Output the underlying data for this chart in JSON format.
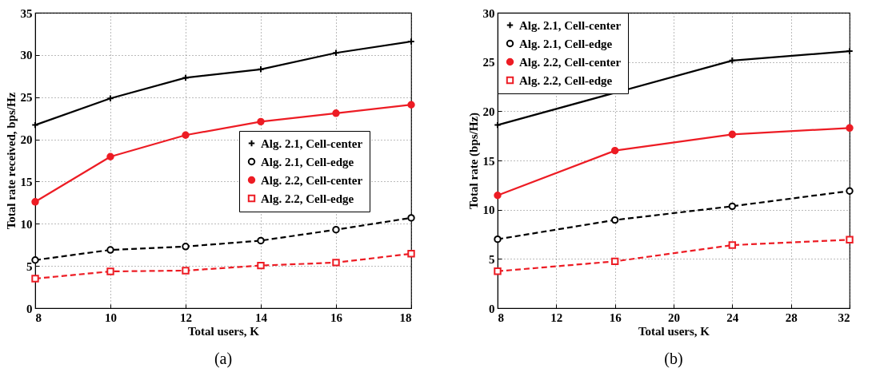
{
  "chart_data": [
    {
      "type": "line",
      "x": [
        8,
        10,
        12,
        14,
        16,
        18
      ],
      "xlabel": "Total users, K",
      "ylabel": "Total rate received, bps/Hz",
      "xlim": [
        8,
        18
      ],
      "xticks": [
        8,
        10,
        12,
        14,
        16,
        18
      ],
      "ylim": [
        0,
        35
      ],
      "yticks": [
        0,
        5,
        10,
        15,
        20,
        25,
        30,
        35
      ],
      "grid": true,
      "legend": "right",
      "annotations": [
        "(a)"
      ],
      "series": [
        {
          "name": "Alg. 2.1, Cell-center",
          "color": "#000000",
          "marker": "cross",
          "line_style": "solid",
          "values": [
            21.7,
            24.85,
            27.3,
            28.3,
            30.25,
            31.6
          ]
        },
        {
          "name": "Alg. 2.1, Cell-edge",
          "color": "#000000",
          "marker": "circle",
          "line_style": "dashed",
          "values": [
            5.7,
            6.9,
            7.3,
            8.0,
            9.3,
            10.7
          ]
        },
        {
          "name": "Alg. 2.2, Cell-center",
          "color": "#ed1c24",
          "marker": "circle",
          "line_style": "solid",
          "values": [
            12.6,
            17.95,
            20.5,
            22.1,
            23.1,
            24.1
          ]
        },
        {
          "name": "Alg. 2.2, Cell-edge",
          "color": "#ed1c24",
          "marker": "square",
          "line_style": "dashed",
          "values": [
            3.5,
            4.35,
            4.45,
            5.05,
            5.4,
            6.45
          ]
        }
      ]
    },
    {
      "type": "line",
      "x": [
        8,
        16,
        24,
        32
      ],
      "xlabel": "Total users, K",
      "ylabel": "Total rate (bps/Hz)",
      "xlim": [
        8,
        32
      ],
      "xticks": [
        8,
        12,
        16,
        20,
        24,
        28,
        32
      ],
      "ylim": [
        0,
        30
      ],
      "yticks": [
        0,
        5,
        10,
        15,
        20,
        25,
        30
      ],
      "grid": true,
      "legend": "top left",
      "annotations": [
        "(b)"
      ],
      "series": [
        {
          "name": "Alg. 2.1, Cell-center",
          "color": "#000000",
          "marker": "cross",
          "line_style": "solid",
          "values": [
            18.6,
            null,
            25.15,
            26.1
          ]
        },
        {
          "name": "Alg. 2.1, Cell-edge",
          "color": "#000000",
          "marker": "circle",
          "line_style": "dashed",
          "values": [
            7.0,
            8.95,
            10.35,
            11.9
          ]
        },
        {
          "name": "Alg. 2.2, Cell-center",
          "color": "#ed1c24",
          "marker": "circle",
          "line_style": "solid",
          "values": [
            11.45,
            16.0,
            17.65,
            18.3
          ]
        },
        {
          "name": "Alg. 2.2, Cell-edge",
          "color": "#ed1c24",
          "marker": "square",
          "line_style": "dashed",
          "values": [
            3.75,
            4.75,
            6.4,
            6.95
          ]
        }
      ]
    }
  ]
}
